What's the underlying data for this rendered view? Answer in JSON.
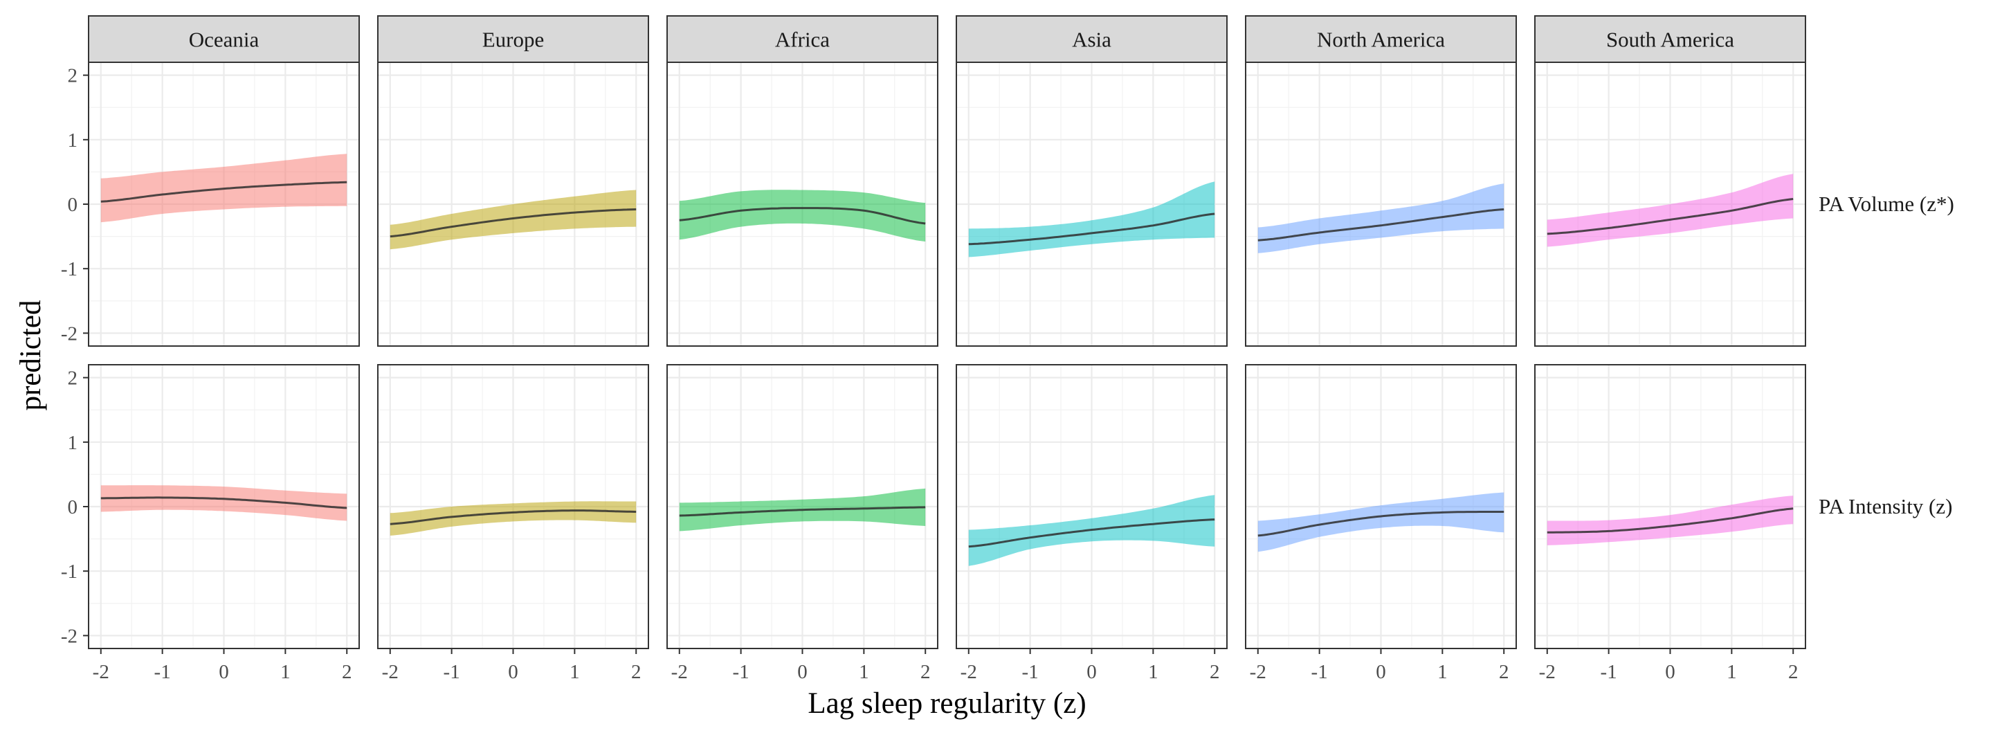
{
  "chart_data": {
    "type": "line",
    "xlabel": "Lag sleep regularity (z)",
    "ylabel": "predicted",
    "xlim": [
      -2.2,
      2.2
    ],
    "ylim": [
      -2.2,
      2.2
    ],
    "x_ticks": [
      -2,
      -1,
      0,
      1,
      2
    ],
    "y_ticks": [
      -2,
      -1,
      0,
      1,
      2
    ],
    "grid": true,
    "columns": [
      "Oceania",
      "Europe",
      "Africa",
      "Asia",
      "North America",
      "South America"
    ],
    "rows": [
      "PA Volume (z*)",
      "PA Intensity (z)"
    ],
    "colors": {
      "Oceania": "#f8766d",
      "Europe": "#b79f00",
      "Africa": "#00ba38",
      "Asia": "#00bfc4",
      "North America": "#619cff",
      "South America": "#f564e3"
    },
    "x": [
      -2,
      -1,
      0,
      1,
      2
    ],
    "panels": [
      {
        "row": "PA Volume (z*)",
        "column": "Oceania",
        "fit": [
          0.04,
          0.15,
          0.24,
          0.3,
          0.34
        ],
        "lower": [
          -0.28,
          -0.15,
          -0.08,
          -0.04,
          -0.03
        ],
        "upper": [
          0.4,
          0.5,
          0.58,
          0.68,
          0.78
        ]
      },
      {
        "row": "PA Volume (z*)",
        "column": "Europe",
        "fit": [
          -0.5,
          -0.35,
          -0.22,
          -0.13,
          -0.08
        ],
        "lower": [
          -0.7,
          -0.55,
          -0.45,
          -0.38,
          -0.35
        ],
        "upper": [
          -0.32,
          -0.15,
          0.0,
          0.12,
          0.22
        ]
      },
      {
        "row": "PA Volume (z*)",
        "column": "Africa",
        "fit": [
          -0.25,
          -0.1,
          -0.06,
          -0.1,
          -0.3
        ],
        "lower": [
          -0.55,
          -0.35,
          -0.3,
          -0.38,
          -0.58
        ],
        "upper": [
          0.05,
          0.2,
          0.22,
          0.18,
          0.02
        ]
      },
      {
        "row": "PA Volume (z*)",
        "column": "Asia",
        "fit": [
          -0.62,
          -0.55,
          -0.45,
          -0.33,
          -0.15
        ],
        "lower": [
          -0.82,
          -0.72,
          -0.62,
          -0.55,
          -0.52
        ],
        "upper": [
          -0.38,
          -0.35,
          -0.25,
          -0.05,
          0.35
        ]
      },
      {
        "row": "PA Volume (z*)",
        "column": "North America",
        "fit": [
          -0.56,
          -0.44,
          -0.33,
          -0.2,
          -0.08
        ],
        "lower": [
          -0.76,
          -0.62,
          -0.52,
          -0.42,
          -0.38
        ],
        "upper": [
          -0.36,
          -0.22,
          -0.1,
          0.05,
          0.32
        ]
      },
      {
        "row": "PA Volume (z*)",
        "column": "South America",
        "fit": [
          -0.46,
          -0.37,
          -0.24,
          -0.1,
          0.08
        ],
        "lower": [
          -0.66,
          -0.55,
          -0.45,
          -0.32,
          -0.22
        ],
        "upper": [
          -0.24,
          -0.13,
          0.0,
          0.18,
          0.47
        ]
      },
      {
        "row": "PA Intensity (z)",
        "column": "Oceania",
        "fit": [
          0.13,
          0.14,
          0.12,
          0.06,
          -0.02
        ],
        "lower": [
          -0.08,
          -0.05,
          -0.07,
          -0.13,
          -0.22
        ],
        "upper": [
          0.33,
          0.33,
          0.31,
          0.25,
          0.2
        ]
      },
      {
        "row": "PA Intensity (z)",
        "column": "Europe",
        "fit": [
          -0.27,
          -0.16,
          -0.09,
          -0.06,
          -0.08
        ],
        "lower": [
          -0.45,
          -0.31,
          -0.23,
          -0.21,
          -0.25
        ],
        "upper": [
          -0.1,
          0.0,
          0.05,
          0.08,
          0.08
        ]
      },
      {
        "row": "PA Intensity (z)",
        "column": "Africa",
        "fit": [
          -0.14,
          -0.09,
          -0.05,
          -0.03,
          -0.01
        ],
        "lower": [
          -0.38,
          -0.29,
          -0.23,
          -0.23,
          -0.3
        ],
        "upper": [
          0.06,
          0.08,
          0.11,
          0.16,
          0.28
        ]
      },
      {
        "row": "PA Intensity (z)",
        "column": "Asia",
        "fit": [
          -0.62,
          -0.48,
          -0.36,
          -0.27,
          -0.2
        ],
        "lower": [
          -0.92,
          -0.66,
          -0.54,
          -0.53,
          -0.62
        ],
        "upper": [
          -0.36,
          -0.29,
          -0.18,
          -0.03,
          0.18
        ]
      },
      {
        "row": "PA Intensity (z)",
        "column": "North America",
        "fit": [
          -0.45,
          -0.28,
          -0.15,
          -0.09,
          -0.08
        ],
        "lower": [
          -0.7,
          -0.47,
          -0.33,
          -0.3,
          -0.4
        ],
        "upper": [
          -0.22,
          -0.12,
          0.02,
          0.12,
          0.22
        ]
      },
      {
        "row": "PA Intensity (z)",
        "column": "South America",
        "fit": [
          -0.4,
          -0.38,
          -0.3,
          -0.18,
          -0.03
        ],
        "lower": [
          -0.6,
          -0.55,
          -0.48,
          -0.39,
          -0.27
        ],
        "upper": [
          -0.22,
          -0.21,
          -0.13,
          0.03,
          0.17
        ]
      }
    ]
  }
}
